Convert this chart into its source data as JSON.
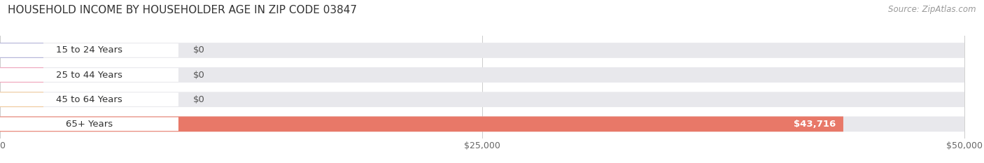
{
  "title": "HOUSEHOLD INCOME BY HOUSEHOLDER AGE IN ZIP CODE 03847",
  "source": "Source: ZipAtlas.com",
  "categories": [
    "15 to 24 Years",
    "25 to 44 Years",
    "45 to 64 Years",
    "65+ Years"
  ],
  "values": [
    0,
    0,
    0,
    43716
  ],
  "bar_colors": [
    "#b0b0d8",
    "#f0a0b8",
    "#f0c898",
    "#e87868"
  ],
  "xlim_max": 50000,
  "xticks": [
    0,
    25000,
    50000
  ],
  "xticklabels": [
    "$0",
    "$25,000",
    "$50,000"
  ],
  "value_labels": [
    "$0",
    "$0",
    "$0",
    "$43,716"
  ],
  "title_fontsize": 11,
  "source_fontsize": 8.5,
  "label_fontsize": 9.5,
  "tick_fontsize": 9,
  "background_color": "#ffffff",
  "bar_bg_color": "#e8e8ec",
  "fig_width": 14.06,
  "fig_height": 2.33
}
